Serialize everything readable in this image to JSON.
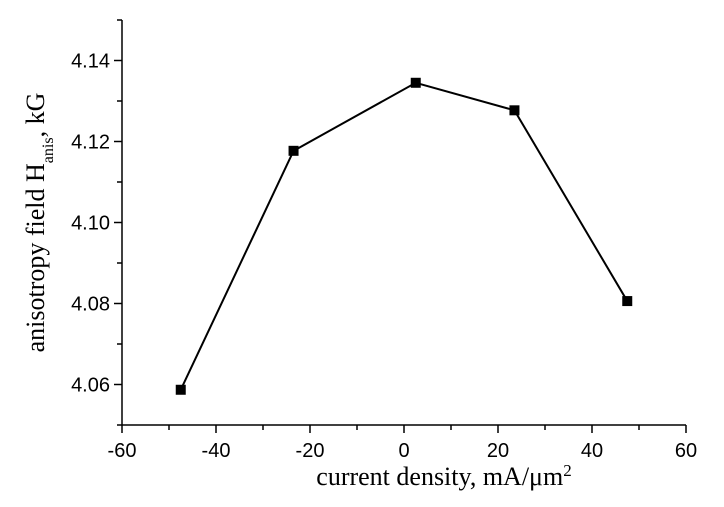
{
  "chart_data": {
    "type": "line",
    "xlabel": "current density, mA/μm",
    "xlabel_sup": "2",
    "ylabel_pre": "anisotropy field H",
    "ylabel_sub": "anis",
    "ylabel_post": ", kG",
    "xlim": [
      -60,
      60
    ],
    "ylim": [
      4.05,
      4.15
    ],
    "x_ticks": [
      -60,
      -40,
      -20,
      0,
      20,
      40,
      60
    ],
    "x_tick_labels": [
      "-60",
      "-40",
      "-20",
      "0",
      "20",
      "40",
      "60"
    ],
    "y_ticks": [
      4.06,
      4.08,
      4.1,
      4.12,
      4.14
    ],
    "y_tick_labels": [
      "4.06",
      "4.08",
      "4.10",
      "4.12",
      "4.14"
    ],
    "grid": false,
    "series": [
      {
        "x": [
          -47.5,
          -23.5,
          2.5,
          23.5,
          47.5
        ],
        "y": [
          4.0587,
          4.1177,
          4.1345,
          4.1277,
          4.0806
        ],
        "marker": "square",
        "color": "#000000"
      }
    ]
  }
}
